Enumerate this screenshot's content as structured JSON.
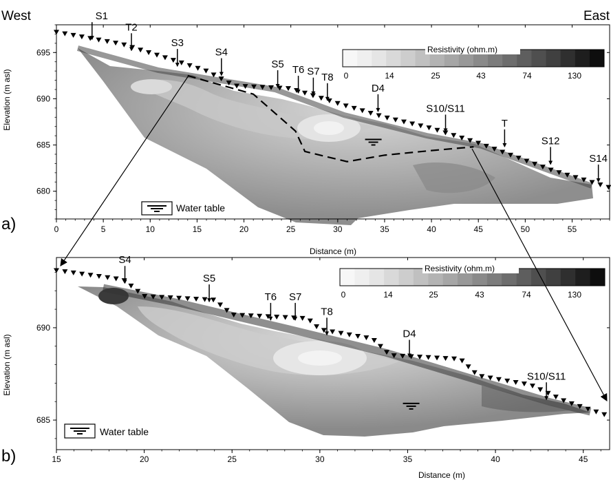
{
  "figure": {
    "west_label": "West",
    "east_label": "East",
    "colorbar_title": "Resistivity (ohm.m)",
    "colorbar_ticks": [
      "0",
      "14",
      "25",
      "43",
      "74",
      "130"
    ],
    "colorbar_shades": [
      "#f7f7f7",
      "#efefef",
      "#e5e5e5",
      "#d9d9d9",
      "#cdcdcd",
      "#c0c0c0",
      "#b3b3b3",
      "#a6a6a6",
      "#989898",
      "#8a8a8a",
      "#7c7c7c",
      "#6d6d6d",
      "#5e5e5e",
      "#4f4f4f",
      "#404040",
      "#2f2f2f",
      "#1e1e1e",
      "#0e0e0e"
    ],
    "water_table_label": "Water table"
  },
  "chart_data": [
    {
      "type": "contour",
      "panel_label": "a)",
      "xlabel": "Distance (m)",
      "ylabel": "Elevation (m asl)",
      "xlim": [
        0,
        59
      ],
      "ylim": [
        677,
        698
      ],
      "xticks": [
        0,
        5,
        10,
        15,
        20,
        25,
        30,
        35,
        40,
        45,
        50,
        55
      ],
      "yticks": [
        680,
        685,
        690,
        695
      ],
      "markers": [
        {
          "label": "S1",
          "x": 3.8,
          "y": 696.2
        },
        {
          "label": "T2",
          "x": 8.0,
          "y": 695.0
        },
        {
          "label": "S3",
          "x": 12.9,
          "y": 693.3
        },
        {
          "label": "S4",
          "x": 17.6,
          "y": 692.3
        },
        {
          "label": "S5",
          "x": 23.6,
          "y": 691.0
        },
        {
          "label": "T6",
          "x": 25.8,
          "y": 690.4
        },
        {
          "label": "S7",
          "x": 27.4,
          "y": 690.2
        },
        {
          "label": "T8",
          "x": 28.9,
          "y": 689.6
        },
        {
          "label": "D4",
          "x": 34.3,
          "y": 688.4
        },
        {
          "label": "S10/S11",
          "x": 41.5,
          "y": 686.2
        },
        {
          "label": "T",
          "x": 47.8,
          "y": 684.6
        },
        {
          "label": "S12",
          "x": 52.7,
          "y": 682.7
        },
        {
          "label": "S14",
          "x": 57.8,
          "y": 680.8
        }
      ],
      "water_table_line": [
        [
          14,
          692.5
        ],
        [
          21,
          690.5
        ],
        [
          25.5,
          686.5
        ],
        [
          26.5,
          684.3
        ],
        [
          31,
          683.2
        ],
        [
          35,
          683.9
        ],
        [
          40,
          684.4
        ],
        [
          44.5,
          684.8
        ]
      ],
      "water_table_symbol": {
        "x": 33.8,
        "y": 685.6
      }
    },
    {
      "type": "contour",
      "panel_label": "b)",
      "xlabel": "Distance (m)",
      "ylabel": "Elevation (m asl)",
      "xlim": [
        15,
        46.5
      ],
      "ylim": [
        683.4,
        693.8
      ],
      "xticks": [
        15,
        20,
        25,
        30,
        35,
        40,
        45
      ],
      "yticks": [
        685,
        690
      ],
      "markers": [
        {
          "label": "S4",
          "x": 18.9,
          "y": 692.3
        },
        {
          "label": "S5",
          "x": 23.7,
          "y": 691.3
        },
        {
          "label": "T6",
          "x": 27.2,
          "y": 690.3
        },
        {
          "label": "S7",
          "x": 28.6,
          "y": 690.3
        },
        {
          "label": "T8",
          "x": 30.4,
          "y": 689.5
        },
        {
          "label": "D4",
          "x": 35.1,
          "y": 688.3
        },
        {
          "label": "S10/S11",
          "x": 42.9,
          "y": 686.0
        }
      ],
      "water_table_symbol": {
        "x": 35.2,
        "y": 685.9
      }
    }
  ]
}
